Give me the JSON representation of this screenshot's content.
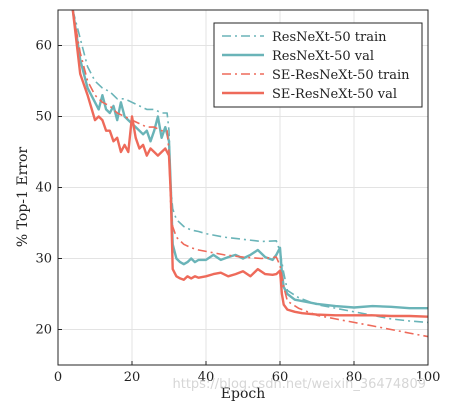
{
  "chart_data": {
    "type": "line",
    "xlabel": "Epoch",
    "ylabel": "% Top-1 Error",
    "xlim": [
      0,
      100
    ],
    "ylim": [
      15,
      65
    ],
    "xticks": [
      0,
      20,
      40,
      60,
      80,
      100
    ],
    "yticks": [
      20,
      30,
      40,
      50,
      60
    ],
    "grid": true,
    "legend_position": "top-right",
    "series": [
      {
        "name": "ResNeXt-50 train",
        "color": "#6ab4b8",
        "style": "dashdot",
        "x": [
          4,
          6,
          8,
          10,
          12,
          14,
          16,
          18,
          20,
          22,
          24,
          26,
          28,
          29.5,
          30,
          30.5,
          31,
          32,
          34,
          36,
          38,
          40,
          45,
          50,
          55,
          59,
          60,
          61,
          62,
          65,
          70,
          75,
          80,
          85,
          90,
          95,
          100
        ],
        "y": [
          65,
          61,
          57,
          55,
          54,
          53.5,
          52.5,
          52.5,
          52,
          51.5,
          51,
          51,
          50.5,
          50.5,
          48,
          40,
          37,
          35.5,
          34.5,
          34,
          33.8,
          33.5,
          33,
          32.7,
          32.4,
          32.5,
          31,
          28,
          25.5,
          24.5,
          23.5,
          23,
          22.5,
          22,
          21.5,
          21.2,
          21
        ]
      },
      {
        "name": "ResNeXt-50 val",
        "color": "#6ab4b8",
        "style": "solid",
        "x": [
          4,
          6,
          8,
          10,
          11,
          12,
          13,
          14,
          15,
          16,
          17,
          18,
          19,
          20,
          21,
          22,
          23,
          24,
          25,
          26,
          27,
          28,
          29,
          30,
          30.5,
          31,
          32,
          33,
          34,
          35,
          36,
          37,
          38,
          40,
          42,
          44,
          46,
          48,
          50,
          52,
          54,
          56,
          58,
          59,
          60,
          60.5,
          61,
          62,
          64,
          66,
          70,
          75,
          80,
          85,
          90,
          95,
          100
        ],
        "y": [
          65,
          58,
          54,
          52,
          51,
          53,
          51,
          50.5,
          51.5,
          49.5,
          52,
          50,
          49.5,
          49,
          48.5,
          48,
          47.5,
          48,
          46.5,
          48,
          50,
          47,
          48.5,
          46.5,
          40,
          32,
          30,
          29.5,
          29.2,
          29.5,
          30,
          29.5,
          29.8,
          29.8,
          30.5,
          29.8,
          30.2,
          30.5,
          30,
          30.5,
          31.2,
          30.2,
          29.8,
          30.5,
          31.5,
          28,
          26,
          25,
          24.2,
          24,
          23.6,
          23.3,
          23.1,
          23.3,
          23.2,
          23,
          23
        ]
      },
      {
        "name": "SE-ResNeXt-50 train",
        "color": "#ee6a5a",
        "style": "dashdot",
        "x": [
          4,
          6,
          8,
          10,
          12,
          14,
          16,
          18,
          20,
          22,
          24,
          26,
          28,
          29.5,
          30,
          30.5,
          31,
          32,
          34,
          36,
          38,
          40,
          45,
          50,
          55,
          59,
          60,
          61,
          62,
          65,
          70,
          75,
          80,
          85,
          90,
          95,
          100
        ],
        "y": [
          65,
          59,
          55,
          53,
          52,
          51.5,
          50.5,
          50,
          49.5,
          49,
          48.5,
          48.5,
          48,
          48,
          45,
          37,
          34.5,
          33,
          32,
          31.5,
          31.2,
          31,
          30.5,
          30.2,
          30,
          30.2,
          29,
          26,
          24,
          23,
          22,
          21.5,
          21,
          20.5,
          20,
          19.5,
          19
        ]
      },
      {
        "name": "SE-ResNeXt-50 val",
        "color": "#ee6a5a",
        "style": "solid",
        "x": [
          4,
          6,
          8,
          10,
          11,
          12,
          13,
          14,
          15,
          16,
          17,
          18,
          19,
          20,
          21,
          22,
          23,
          24,
          25,
          26,
          27,
          28,
          29,
          30,
          30.5,
          31,
          32,
          33,
          34,
          35,
          36,
          37,
          38,
          40,
          42,
          44,
          46,
          48,
          50,
          52,
          54,
          56,
          58,
          59,
          60,
          60.5,
          61,
          62,
          64,
          66,
          70,
          75,
          80,
          85,
          90,
          95,
          100
        ],
        "y": [
          65,
          56,
          53,
          49.5,
          50,
          49.5,
          48,
          48,
          46.5,
          47,
          45,
          46,
          45,
          50,
          47,
          45.5,
          46,
          44.5,
          45.5,
          45,
          44.5,
          45,
          45.5,
          44.5,
          39,
          28.5,
          27.5,
          27.2,
          27,
          27.5,
          27.2,
          27.5,
          27.3,
          27.5,
          27.8,
          28,
          27.5,
          27.8,
          28.2,
          27.5,
          28.5,
          27.8,
          27.7,
          27.8,
          28.3,
          25,
          23.5,
          22.8,
          22.5,
          22.3,
          22.1,
          22,
          22,
          22,
          21.9,
          21.9,
          21.8
        ]
      }
    ]
  },
  "watermark": "https://blog.csdn.net/weixin_36474809"
}
